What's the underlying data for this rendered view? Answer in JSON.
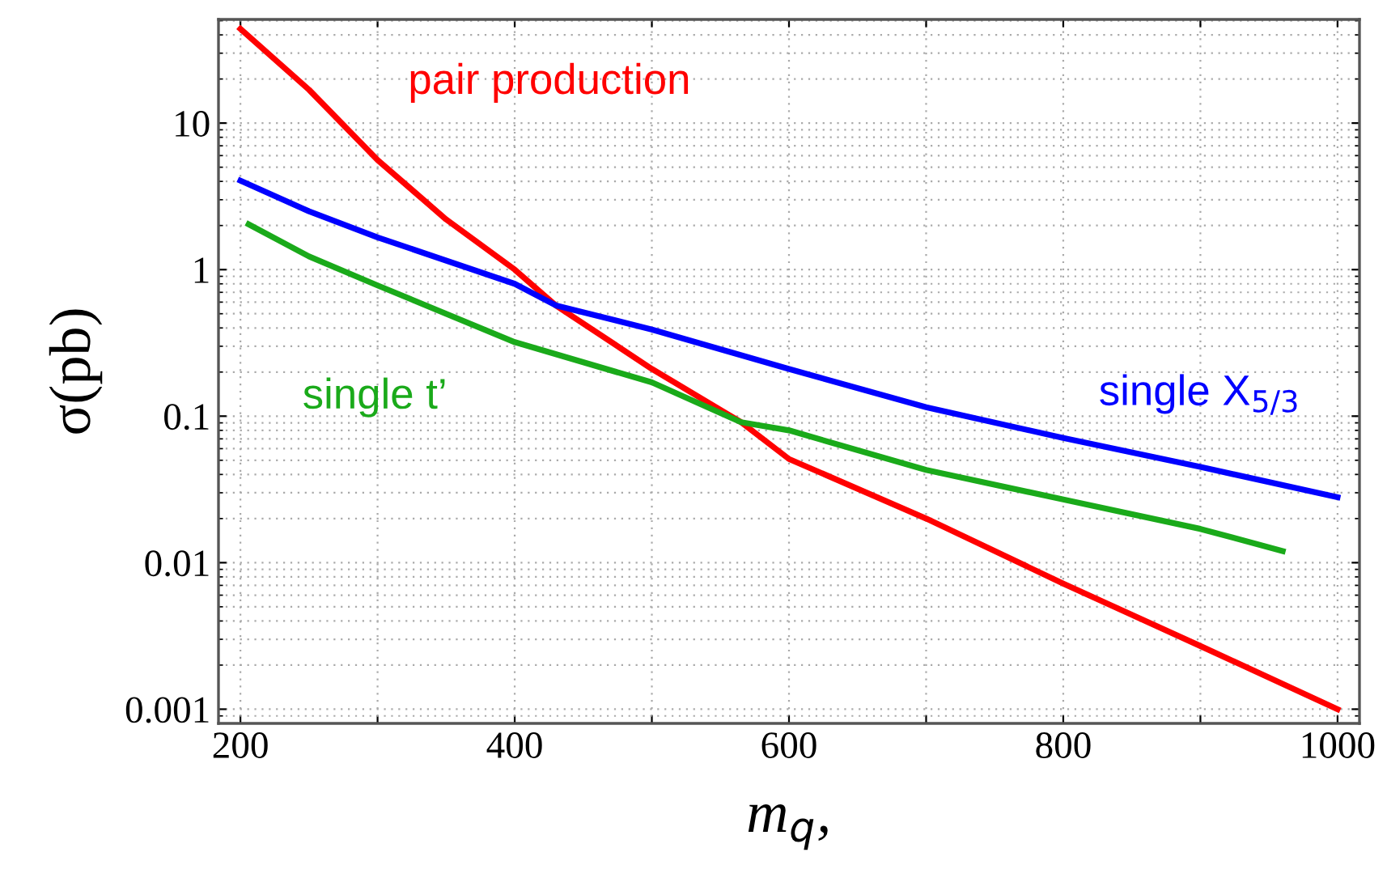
{
  "chart_data": {
    "type": "line",
    "xlabel": "m$_{q}$,",
    "ylabel": "σ(pb)",
    "log": "y",
    "xlim": [
      184,
      1016
    ],
    "ylim": [
      0.0008,
      51
    ],
    "xticks": [
      200,
      {
        "value": 300,
        "label": null
      },
      400,
      {
        "value": 500,
        "label": null
      },
      600,
      {
        "value": 700,
        "label": null
      },
      800,
      {
        "value": 900,
        "label": null
      },
      1000
    ],
    "yticks": [
      0.001,
      0.01,
      0.1,
      1,
      10
    ],
    "grid": true,
    "marker": "none",
    "line_style": "solid",
    "series": [
      {
        "name": "pair production",
        "color": "#ff0000",
        "x": [
          200,
          250,
          300,
          350,
          400,
          430,
          500,
          565,
          600,
          700,
          800,
          900,
          1000
        ],
        "values": [
          44,
          16.9,
          5.6,
          2.2,
          1.0,
          0.57,
          0.21,
          0.091,
          0.051,
          0.02,
          0.0072,
          0.0027,
          0.001
        ]
      },
      {
        "name": "single t’",
        "color": "#1aaa1a",
        "x": [
          206,
          250,
          300,
          400,
          500,
          565,
          600,
          700,
          800,
          900,
          960
        ],
        "values": [
          2.04,
          1.23,
          0.78,
          0.32,
          0.17,
          0.091,
          0.08,
          0.043,
          0.027,
          0.017,
          0.012
        ]
      },
      {
        "name": "single X$_{5/3}$",
        "color": "#0000ff",
        "x": [
          200,
          250,
          300,
          400,
          430,
          500,
          600,
          700,
          800,
          900,
          1000
        ],
        "values": [
          4.05,
          2.5,
          1.66,
          0.8,
          0.57,
          0.39,
          0.21,
          0.115,
          0.071,
          0.045,
          0.028
        ]
      }
    ]
  }
}
